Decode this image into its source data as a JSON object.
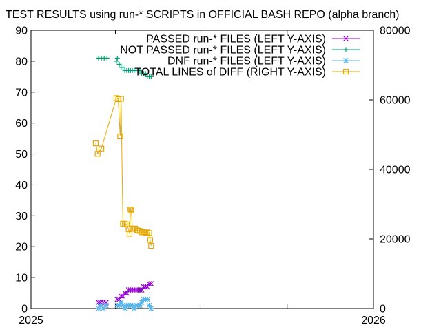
{
  "chart_data": {
    "type": "line",
    "title": "TEST RESULTS using run-* SCRIPTS in OFFICIAL BASH REPO (alpha branch)",
    "xlabel": "",
    "ylabel": "",
    "y2label": "",
    "x_ticks": [
      "2025",
      "2026"
    ],
    "x_range": [
      "2025-01-01",
      "2026-01-01"
    ],
    "y_range": [
      0,
      90
    ],
    "y_ticks": [
      0,
      10,
      20,
      30,
      40,
      50,
      60,
      70,
      80,
      90
    ],
    "y2_range": [
      0,
      80000
    ],
    "y2_ticks": [
      0,
      20000,
      40000,
      60000,
      80000
    ],
    "grid": false,
    "legend_position": "top-right",
    "series": [
      {
        "name": "PASSED run-* FILES (LEFT Y-AXIS)",
        "axis": "left",
        "color": "#9400d3",
        "marker": "x",
        "line": false,
        "points": [
          [
            "2025-03-14",
            2
          ],
          [
            "2025-03-16",
            2
          ],
          [
            "2025-03-19",
            2
          ],
          [
            "2025-03-22",
            2
          ],
          [
            "2025-04-03",
            3
          ],
          [
            "2025-04-05",
            3
          ],
          [
            "2025-04-07",
            4
          ],
          [
            "2025-04-09",
            4
          ],
          [
            "2025-04-11",
            5
          ],
          [
            "2025-04-13",
            5
          ],
          [
            "2025-04-15",
            6
          ],
          [
            "2025-04-17",
            6
          ],
          [
            "2025-04-19",
            6
          ],
          [
            "2025-04-21",
            6
          ],
          [
            "2025-04-23",
            6
          ],
          [
            "2025-04-25",
            6
          ],
          [
            "2025-04-27",
            6
          ],
          [
            "2025-04-29",
            6
          ],
          [
            "2025-05-01",
            7
          ],
          [
            "2025-05-03",
            7
          ],
          [
            "2025-05-05",
            7
          ],
          [
            "2025-05-07",
            8
          ],
          [
            "2025-05-09",
            8
          ]
        ]
      },
      {
        "name": "NOT PASSED run-* FILES (LEFT Y-AXIS)",
        "axis": "left",
        "color": "#009e73",
        "marker": "plus",
        "line": false,
        "points": [
          [
            "2025-03-14",
            81
          ],
          [
            "2025-03-17",
            81
          ],
          [
            "2025-03-20",
            81
          ],
          [
            "2025-03-23",
            81
          ],
          [
            "2025-04-02",
            80
          ],
          [
            "2025-04-03",
            81
          ],
          [
            "2025-04-05",
            79
          ],
          [
            "2025-04-07",
            78
          ],
          [
            "2025-04-09",
            78
          ],
          [
            "2025-04-11",
            77
          ],
          [
            "2025-04-13",
            77
          ],
          [
            "2025-04-15",
            77
          ],
          [
            "2025-04-17",
            77
          ],
          [
            "2025-04-19",
            77
          ],
          [
            "2025-04-21",
            77
          ],
          [
            "2025-04-23",
            77
          ],
          [
            "2025-04-25",
            77
          ],
          [
            "2025-04-27",
            77
          ],
          [
            "2025-04-29",
            76
          ],
          [
            "2025-05-01",
            76
          ],
          [
            "2025-05-03",
            76
          ],
          [
            "2025-05-05",
            75
          ],
          [
            "2025-05-07",
            75
          ],
          [
            "2025-05-09",
            75
          ]
        ]
      },
      {
        "name": "DNF run-* FILES (LEFT Y-AXIS)",
        "axis": "left",
        "color": "#56b4e9",
        "marker": "star",
        "line": false,
        "points": [
          [
            "2025-03-14",
            0
          ],
          [
            "2025-03-16",
            1
          ],
          [
            "2025-03-19",
            0
          ],
          [
            "2025-03-22",
            1
          ],
          [
            "2025-04-03",
            1
          ],
          [
            "2025-04-05",
            1
          ],
          [
            "2025-04-07",
            2
          ],
          [
            "2025-04-09",
            1
          ],
          [
            "2025-04-11",
            0
          ],
          [
            "2025-04-13",
            1
          ],
          [
            "2025-04-15",
            1
          ],
          [
            "2025-04-17",
            1
          ],
          [
            "2025-04-19",
            1
          ],
          [
            "2025-04-21",
            0
          ],
          [
            "2025-04-23",
            1
          ],
          [
            "2025-04-25",
            1
          ],
          [
            "2025-04-27",
            1
          ],
          [
            "2025-04-29",
            2
          ],
          [
            "2025-05-01",
            3
          ],
          [
            "2025-05-03",
            3
          ],
          [
            "2025-05-05",
            3
          ],
          [
            "2025-05-07",
            1
          ],
          [
            "2025-05-09",
            0
          ]
        ]
      },
      {
        "name": "TOTAL LINES of DIFF (RIGHT Y-AXIS)",
        "axis": "right",
        "color": "#e6a800",
        "marker": "square",
        "line": true,
        "points": [
          [
            "2025-03-11",
            47500
          ],
          [
            "2025-03-13",
            44500
          ],
          [
            "2025-03-17",
            46000
          ],
          [
            "2025-04-02",
            60500
          ],
          [
            "2025-04-04",
            60200
          ],
          [
            "2025-04-06",
            49500
          ],
          [
            "2025-04-07",
            60300
          ],
          [
            "2025-04-09",
            24400
          ],
          [
            "2025-04-11",
            24300
          ],
          [
            "2025-04-13",
            24200
          ],
          [
            "2025-04-15",
            22800
          ],
          [
            "2025-04-16",
            21500
          ],
          [
            "2025-04-17",
            28500
          ],
          [
            "2025-04-18",
            28200
          ],
          [
            "2025-04-19",
            23000
          ],
          [
            "2025-04-20",
            22900
          ],
          [
            "2025-04-22",
            23000
          ],
          [
            "2025-04-24",
            22500
          ],
          [
            "2025-04-25",
            22400
          ],
          [
            "2025-04-27",
            22300
          ],
          [
            "2025-04-29",
            21900
          ],
          [
            "2025-05-01",
            22000
          ],
          [
            "2025-05-03",
            21800
          ],
          [
            "2025-05-05",
            21900
          ],
          [
            "2025-05-07",
            21700
          ],
          [
            "2025-05-08",
            19700
          ],
          [
            "2025-05-09",
            18000
          ]
        ]
      }
    ]
  }
}
